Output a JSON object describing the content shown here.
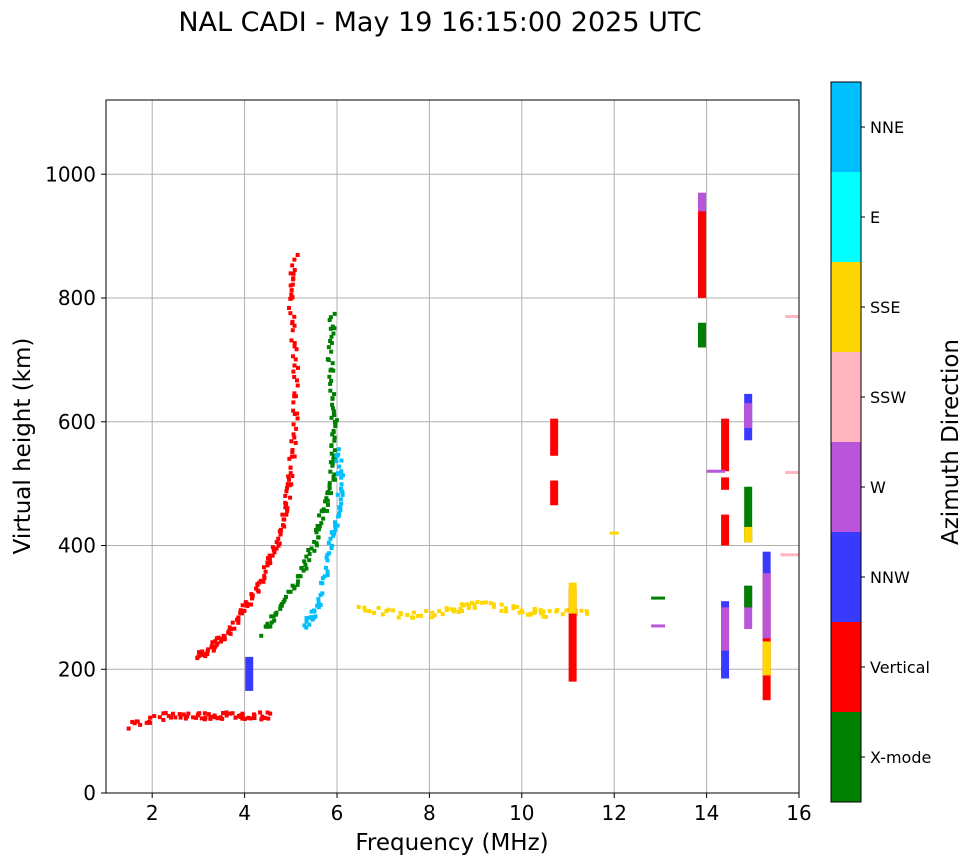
{
  "chart_data": {
    "type": "scatter",
    "title": "NAL CADI - May 19 16:15:00 2025 UTC",
    "xlabel": "Frequency (MHz)",
    "ylabel": "Virtual height (km)",
    "xlim": [
      1,
      16
    ],
    "ylim": [
      0,
      1120
    ],
    "xticks": [
      2,
      4,
      6,
      8,
      10,
      12,
      14,
      16
    ],
    "yticks": [
      0,
      200,
      400,
      600,
      800,
      1000
    ],
    "grid": true,
    "colorbar": {
      "label": "Azimuth Direction",
      "categories": [
        {
          "name": "X-mode",
          "color": "#008000"
        },
        {
          "name": "Vertical",
          "color": "#ff0000"
        },
        {
          "name": "NNW",
          "color": "#3a3aff"
        },
        {
          "name": "W",
          "color": "#b955d9"
        },
        {
          "name": "SSW",
          "color": "#ffb6c1"
        },
        {
          "name": "SSE",
          "color": "#ffd700"
        },
        {
          "name": "E",
          "color": "#00ffff"
        },
        {
          "name": "NNE",
          "color": "#00bfff"
        }
      ]
    },
    "bars": [
      {
        "f": 13.9,
        "h0": 800,
        "h1": 970,
        "cat": "Vertical"
      },
      {
        "f": 13.9,
        "h0": 940,
        "h1": 970,
        "cat": "W"
      },
      {
        "f": 13.9,
        "h0": 720,
        "h1": 760,
        "cat": "X-mode"
      },
      {
        "f": 14.4,
        "h0": 520,
        "h1": 605,
        "cat": "Vertical"
      },
      {
        "f": 14.4,
        "h0": 400,
        "h1": 450,
        "cat": "Vertical"
      },
      {
        "f": 14.4,
        "h0": 490,
        "h1": 510,
        "cat": "Vertical"
      },
      {
        "f": 14.4,
        "h0": 185,
        "h1": 310,
        "cat": "NNW"
      },
      {
        "f": 14.4,
        "h0": 230,
        "h1": 300,
        "cat": "W"
      },
      {
        "f": 14.9,
        "h0": 570,
        "h1": 645,
        "cat": "NNW"
      },
      {
        "f": 14.9,
        "h0": 590,
        "h1": 630,
        "cat": "W"
      },
      {
        "f": 14.9,
        "h0": 405,
        "h1": 495,
        "cat": "X-mode"
      },
      {
        "f": 14.9,
        "h0": 405,
        "h1": 430,
        "cat": "SSE"
      },
      {
        "f": 14.9,
        "h0": 265,
        "h1": 335,
        "cat": "W"
      },
      {
        "f": 14.9,
        "h0": 300,
        "h1": 335,
        "cat": "X-mode"
      },
      {
        "f": 15.3,
        "h0": 150,
        "h1": 355,
        "cat": "Vertical"
      },
      {
        "f": 15.3,
        "h0": 250,
        "h1": 355,
        "cat": "W"
      },
      {
        "f": 15.3,
        "h0": 190,
        "h1": 245,
        "cat": "SSE"
      },
      {
        "f": 15.3,
        "h0": 355,
        "h1": 390,
        "cat": "NNW"
      },
      {
        "f": 10.7,
        "h0": 545,
        "h1": 605,
        "cat": "Vertical"
      },
      {
        "f": 10.7,
        "h0": 465,
        "h1": 505,
        "cat": "Vertical"
      },
      {
        "f": 11.1,
        "h0": 180,
        "h1": 330,
        "cat": "Vertical"
      },
      {
        "f": 11.1,
        "h0": 290,
        "h1": 340,
        "cat": "SSE"
      },
      {
        "f": 4.1,
        "h0": 165,
        "h1": 220,
        "cat": "NNW"
      }
    ],
    "traces": [
      {
        "cat": "Vertical",
        "points": [
          [
            3.0,
            220
          ],
          [
            3.3,
            235
          ],
          [
            3.6,
            255
          ],
          [
            3.9,
            285
          ],
          [
            4.2,
            320
          ],
          [
            4.5,
            365
          ],
          [
            4.7,
            400
          ],
          [
            4.9,
            460
          ],
          [
            5.0,
            520
          ],
          [
            5.1,
            600
          ],
          [
            5.1,
            700
          ],
          [
            5.0,
            800
          ],
          [
            5.1,
            870
          ]
        ]
      },
      {
        "cat": "X-mode",
        "points": [
          [
            4.4,
            260
          ],
          [
            4.8,
            300
          ],
          [
            5.2,
            350
          ],
          [
            5.5,
            400
          ],
          [
            5.7,
            450
          ],
          [
            5.9,
            500
          ],
          [
            5.9,
            560
          ],
          [
            5.95,
            620
          ],
          [
            5.85,
            700
          ],
          [
            5.9,
            780
          ]
        ]
      },
      {
        "cat": "NNE",
        "points": [
          [
            5.3,
            270
          ],
          [
            5.6,
            300
          ],
          [
            5.8,
            380
          ],
          [
            6.0,
            440
          ],
          [
            6.1,
            500
          ],
          [
            6.0,
            560
          ]
        ]
      },
      {
        "cat": "SSE",
        "points": [
          [
            6.5,
            300
          ],
          [
            7.5,
            285
          ],
          [
            8.5,
            295
          ],
          [
            9.0,
            305
          ],
          [
            10.0,
            295
          ],
          [
            10.5,
            290
          ],
          [
            11.5,
            295
          ]
        ]
      },
      {
        "cat": "Vertical",
        "points": [
          [
            1.5,
            110
          ],
          [
            2.3,
            125
          ],
          [
            3.0,
            125
          ],
          [
            3.5,
            125
          ],
          [
            4.0,
            125
          ],
          [
            4.6,
            125
          ]
        ]
      }
    ],
    "segments": [
      {
        "cat": "X-mode",
        "f0": 12.8,
        "f1": 13.1,
        "h": 315
      },
      {
        "cat": "W",
        "f0": 12.8,
        "f1": 13.1,
        "h": 270
      },
      {
        "cat": "SSE",
        "f0": 11.9,
        "f1": 12.1,
        "h": 420
      },
      {
        "cat": "W",
        "f0": 14.0,
        "f1": 14.4,
        "h": 520
      },
      {
        "cat": "SSW",
        "f0": 15.7,
        "f1": 16.0,
        "h": 770
      },
      {
        "cat": "SSW",
        "f0": 15.7,
        "f1": 16.0,
        "h": 518
      },
      {
        "cat": "SSW",
        "f0": 15.6,
        "f1": 16.0,
        "h": 385
      }
    ]
  }
}
